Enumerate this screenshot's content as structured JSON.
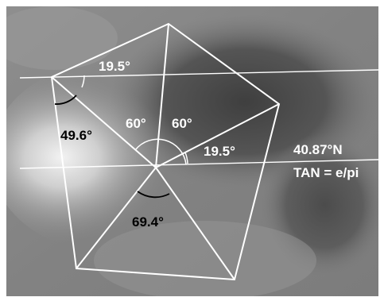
{
  "image": {
    "subject": "grayscale-surface-photograph",
    "overlay_color": "#ffffff",
    "arc_color_dark": "#000000"
  },
  "overlay": {
    "angle_top": "19.5°",
    "angle_upper_left": "49.6°",
    "angle_center_left": "60°",
    "angle_center_right": "60°",
    "angle_lower_right": "19.5°",
    "angle_bottom": "69.4°"
  },
  "annotation": {
    "latitude": "40.87°N",
    "formula": "TAN = e/pi"
  }
}
